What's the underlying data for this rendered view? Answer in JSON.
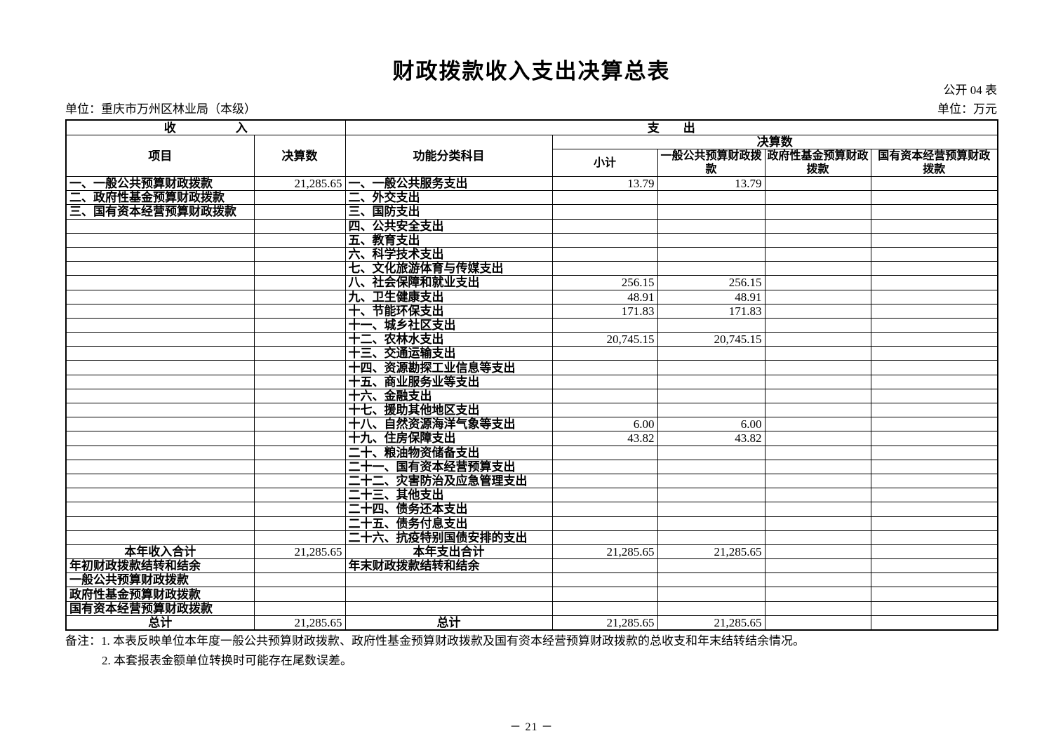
{
  "header": {
    "title": "财政拨款收入支出决算总表",
    "form_code": "公开 04 表",
    "org_unit": "单位：重庆市万州区林业局（本级）",
    "currency_unit": "单位：万元"
  },
  "table": {
    "sections": {
      "income": "收　　　　　入",
      "expenditure": "支　　出"
    },
    "columns": {
      "item": "项目",
      "final_amount": "决算数",
      "functional_category": "功能分类科目",
      "final_amount_group": "决算数",
      "subtotal": "小计",
      "general_public_budget": "一般公共预算财政拨款",
      "gov_fund_budget": "政府性基金预算财政拨款",
      "state_capital_budget": "国有资本经营预算财政拨款"
    },
    "rows": [
      {
        "income_item": "一、一般公共预算财政拨款",
        "income_value": "21,285.65",
        "expense_item": "一、一般公共服务支出",
        "subtotal": "13.79",
        "general": "13.79",
        "gov_fund": "",
        "state_capital": ""
      },
      {
        "income_item": "二、政府性基金预算财政拨款",
        "income_value": "",
        "expense_item": "二、外交支出",
        "subtotal": "",
        "general": "",
        "gov_fund": "",
        "state_capital": ""
      },
      {
        "income_item": "三、国有资本经营预算财政拨款",
        "income_value": "",
        "expense_item": "三、国防支出",
        "subtotal": "",
        "general": "",
        "gov_fund": "",
        "state_capital": ""
      },
      {
        "income_item": "",
        "income_value": "",
        "expense_item": "四、公共安全支出",
        "subtotal": "",
        "general": "",
        "gov_fund": "",
        "state_capital": ""
      },
      {
        "income_item": "",
        "income_value": "",
        "expense_item": "五、教育支出",
        "subtotal": "",
        "general": "",
        "gov_fund": "",
        "state_capital": ""
      },
      {
        "income_item": "",
        "income_value": "",
        "expense_item": "六、科学技术支出",
        "subtotal": "",
        "general": "",
        "gov_fund": "",
        "state_capital": ""
      },
      {
        "income_item": "",
        "income_value": "",
        "expense_item": "七、文化旅游体育与传媒支出",
        "subtotal": "",
        "general": "",
        "gov_fund": "",
        "state_capital": ""
      },
      {
        "income_item": "",
        "income_value": "",
        "expense_item": "八、社会保障和就业支出",
        "subtotal": "256.15",
        "general": "256.15",
        "gov_fund": "",
        "state_capital": ""
      },
      {
        "income_item": "",
        "income_value": "",
        "expense_item": "九、卫生健康支出",
        "subtotal": "48.91",
        "general": "48.91",
        "gov_fund": "",
        "state_capital": ""
      },
      {
        "income_item": "",
        "income_value": "",
        "expense_item": "十、节能环保支出",
        "subtotal": "171.83",
        "general": "171.83",
        "gov_fund": "",
        "state_capital": ""
      },
      {
        "income_item": "",
        "income_value": "",
        "expense_item": "十一、城乡社区支出",
        "subtotal": "",
        "general": "",
        "gov_fund": "",
        "state_capital": ""
      },
      {
        "income_item": "",
        "income_value": "",
        "expense_item": "十二、农林水支出",
        "subtotal": "20,745.15",
        "general": "20,745.15",
        "gov_fund": "",
        "state_capital": ""
      },
      {
        "income_item": "",
        "income_value": "",
        "expense_item": "十三、交通运输支出",
        "subtotal": "",
        "general": "",
        "gov_fund": "",
        "state_capital": ""
      },
      {
        "income_item": "",
        "income_value": "",
        "expense_item": "十四、资源勘探工业信息等支出",
        "subtotal": "",
        "general": "",
        "gov_fund": "",
        "state_capital": ""
      },
      {
        "income_item": "",
        "income_value": "",
        "expense_item": "十五、商业服务业等支出",
        "subtotal": "",
        "general": "",
        "gov_fund": "",
        "state_capital": ""
      },
      {
        "income_item": "",
        "income_value": "",
        "expense_item": "十六、金融支出",
        "subtotal": "",
        "general": "",
        "gov_fund": "",
        "state_capital": ""
      },
      {
        "income_item": "",
        "income_value": "",
        "expense_item": "十七、援助其他地区支出",
        "subtotal": "",
        "general": "",
        "gov_fund": "",
        "state_capital": ""
      },
      {
        "income_item": "",
        "income_value": "",
        "expense_item": "十八、自然资源海洋气象等支出",
        "subtotal": "6.00",
        "general": "6.00",
        "gov_fund": "",
        "state_capital": ""
      },
      {
        "income_item": "",
        "income_value": "",
        "expense_item": "十九、住房保障支出",
        "subtotal": "43.82",
        "general": "43.82",
        "gov_fund": "",
        "state_capital": ""
      },
      {
        "income_item": "",
        "income_value": "",
        "expense_item": "二十、粮油物资储备支出",
        "subtotal": "",
        "general": "",
        "gov_fund": "",
        "state_capital": ""
      },
      {
        "income_item": "",
        "income_value": "",
        "expense_item": "二十一、国有资本经营预算支出",
        "subtotal": "",
        "general": "",
        "gov_fund": "",
        "state_capital": ""
      },
      {
        "income_item": "",
        "income_value": "",
        "expense_item": "二十二、灾害防治及应急管理支出",
        "subtotal": "",
        "general": "",
        "gov_fund": "",
        "state_capital": ""
      },
      {
        "income_item": "",
        "income_value": "",
        "expense_item": "二十三、其他支出",
        "subtotal": "",
        "general": "",
        "gov_fund": "",
        "state_capital": ""
      },
      {
        "income_item": "",
        "income_value": "",
        "expense_item": "二十四、债务还本支出",
        "subtotal": "",
        "general": "",
        "gov_fund": "",
        "state_capital": ""
      },
      {
        "income_item": "",
        "income_value": "",
        "expense_item": "二十五、债务付息支出",
        "subtotal": "",
        "general": "",
        "gov_fund": "",
        "state_capital": ""
      },
      {
        "income_item": "",
        "income_value": "",
        "expense_item": "二十六、抗疫特别国债安排的支出",
        "subtotal": "",
        "general": "",
        "gov_fund": "",
        "state_capital": ""
      },
      {
        "income_item": "本年收入合计",
        "income_center": true,
        "income_value": "21,285.65",
        "expense_item": "本年支出合计",
        "expense_center": true,
        "subtotal": "21,285.65",
        "general": "21,285.65",
        "gov_fund": "",
        "state_capital": ""
      },
      {
        "income_item": "年初财政拨款结转和结余",
        "income_value": "",
        "expense_item": "年末财政拨款结转和结余",
        "subtotal": "",
        "general": "",
        "gov_fund": "",
        "state_capital": ""
      },
      {
        "income_item": "一般公共预算财政拨款",
        "income_indent": true,
        "income_value": "",
        "expense_item": "",
        "subtotal": "",
        "general": "",
        "gov_fund": "",
        "state_capital": ""
      },
      {
        "income_item": "政府性基金预算财政拨款",
        "income_indent": true,
        "income_value": "",
        "expense_item": "",
        "subtotal": "",
        "general": "",
        "gov_fund": "",
        "state_capital": ""
      },
      {
        "income_item": "国有资本经营预算财政拨款",
        "income_indent": true,
        "income_value": "",
        "expense_item": "",
        "subtotal": "",
        "general": "",
        "gov_fund": "",
        "state_capital": ""
      },
      {
        "income_item": "总计",
        "income_center": true,
        "income_value": "21,285.65",
        "expense_item": "总计",
        "expense_center": true,
        "subtotal": "21,285.65",
        "general": "21,285.65",
        "gov_fund": "",
        "state_capital": ""
      }
    ]
  },
  "notes": {
    "line1": "备注：1. 本表反映单位本年度一般公共预算财政拨款、政府性基金预算财政拨款及国有资本经营预算财政拨款的总收支和年末结转结余情况。",
    "line2": "2. 本套报表金额单位转换时可能存在尾数误差。"
  },
  "footer": {
    "page_number": "－ 21 －"
  }
}
